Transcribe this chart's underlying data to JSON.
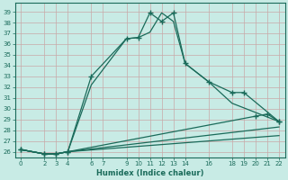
{
  "title": "",
  "xlabel": "Humidex (Indice chaleur)",
  "bg_color": "#c8ebe5",
  "grid_color": "#a8d5cc",
  "line_color": "#1a6b5a",
  "xlim": [
    -0.5,
    22.5
  ],
  "ylim": [
    25.5,
    39.8
  ],
  "xticks": [
    0,
    2,
    3,
    4,
    6,
    7,
    9,
    10,
    11,
    12,
    13,
    14,
    16,
    18,
    19,
    20,
    21,
    22
  ],
  "yticks": [
    26,
    27,
    28,
    29,
    30,
    31,
    32,
    33,
    34,
    35,
    36,
    37,
    38,
    39
  ],
  "lines": [
    {
      "x": [
        0,
        2,
        3,
        4,
        6,
        9,
        10,
        11,
        12,
        13,
        14,
        16,
        18,
        19,
        22
      ],
      "y": [
        26.2,
        25.8,
        25.8,
        26.0,
        33.0,
        36.5,
        36.6,
        38.9,
        38.1,
        38.9,
        34.2,
        32.5,
        31.5,
        31.5,
        28.8
      ],
      "marker": true,
      "lw": 0.9
    },
    {
      "x": [
        0,
        2,
        3,
        4,
        6,
        9,
        10,
        11,
        12,
        13,
        14,
        16,
        18,
        22
      ],
      "y": [
        26.2,
        25.8,
        25.8,
        26.0,
        32.2,
        36.5,
        36.6,
        37.1,
        38.9,
        38.1,
        34.2,
        32.5,
        30.5,
        28.8
      ],
      "marker": false,
      "lw": 0.9
    },
    {
      "x": [
        0,
        2,
        3,
        4,
        20,
        21,
        22
      ],
      "y": [
        26.2,
        25.8,
        25.8,
        26.0,
        29.3,
        29.5,
        28.8
      ],
      "marker": true,
      "lw": 0.9
    },
    {
      "x": [
        0,
        2,
        3,
        4,
        22
      ],
      "y": [
        26.2,
        25.8,
        25.8,
        26.0,
        28.3
      ],
      "marker": false,
      "lw": 0.9
    },
    {
      "x": [
        0,
        2,
        3,
        4,
        22
      ],
      "y": [
        26.2,
        25.8,
        25.8,
        26.0,
        27.5
      ],
      "marker": false,
      "lw": 0.9
    }
  ]
}
